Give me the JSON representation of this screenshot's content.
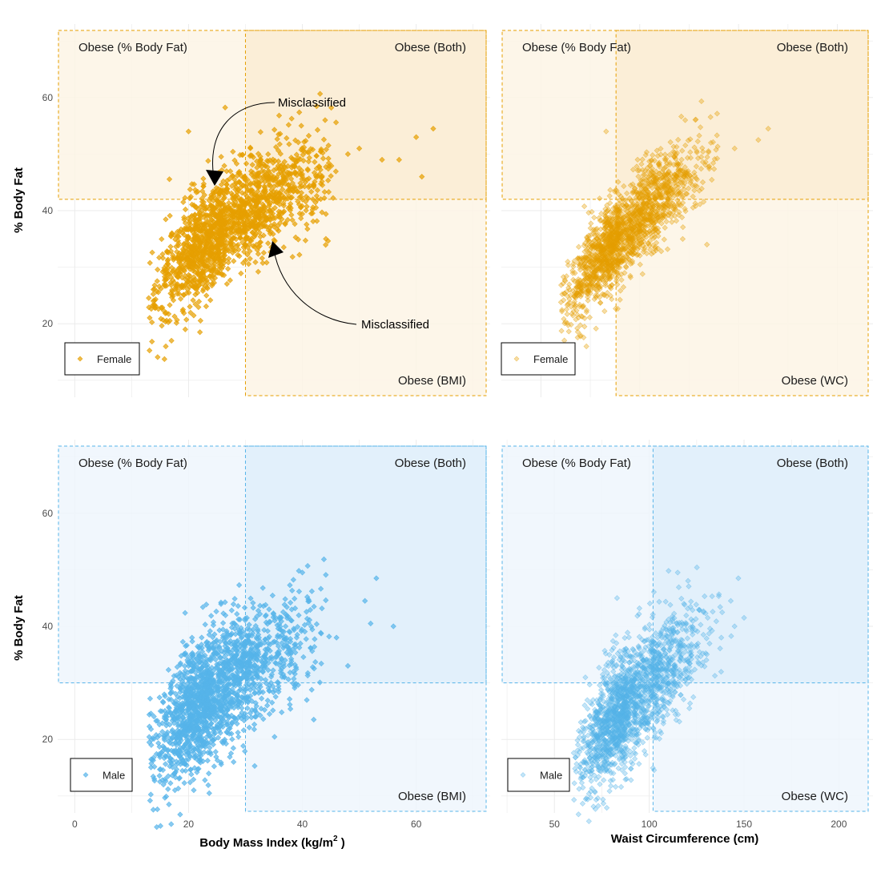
{
  "colors": {
    "female": "#E69F00",
    "male": "#56B4E9",
    "grid": "#ebebeb",
    "female_fill_light": "#fdf5e5",
    "female_fill_dark": "#faebd0",
    "male_fill_light": "#eef6fd",
    "male_fill_dark": "#ddeef9"
  },
  "y_axis_title": "% Body Fat",
  "x_axis_titles": {
    "bmi_main": "Body Mass Index (kg/m",
    "bmi_sup": "2",
    "bmi_end": " )",
    "wc": "Waist Circumference (cm)"
  },
  "annotations": {
    "misclassified_top": "Misclassified",
    "misclassified_bottom": "Misclassified"
  },
  "chart_data": [
    {
      "id": "female-bmi",
      "type": "scatter",
      "group": "female",
      "legend": "Female",
      "xlim": [
        -3,
        73
      ],
      "ylim": [
        7,
        73
      ],
      "xticks": [
        0,
        20,
        40,
        60
      ],
      "yticks": [
        20,
        40,
        60
      ],
      "threshold_x": 30,
      "threshold_y": 42,
      "regions": {
        "pbf": "Obese (% Body Fat)",
        "both": "Obese (Both)",
        "x": "Obese (BMI)"
      },
      "cloud": {
        "x_range": [
          13,
          46
        ],
        "x_mode": 26,
        "curve": "log",
        "y_low": 24,
        "y_high": 48,
        "spread": 4.5,
        "count": 1700,
        "seed": 11
      },
      "outliers": [
        [
          20,
          54
        ],
        [
          44,
          56
        ],
        [
          48,
          50
        ],
        [
          50,
          51
        ],
        [
          54,
          49
        ],
        [
          57,
          49
        ],
        [
          60,
          53
        ],
        [
          61,
          46
        ],
        [
          63,
          54.5
        ],
        [
          30,
          34
        ],
        [
          22,
          18.5
        ],
        [
          16,
          16
        ],
        [
          17,
          17
        ]
      ],
      "opacity": 0.7
    },
    {
      "id": "female-wc",
      "type": "scatter",
      "group": "female",
      "legend": "Female",
      "xlim": [
        30,
        218
      ],
      "ylim": [
        7,
        73
      ],
      "xticks": [
        50,
        100,
        150,
        200
      ],
      "yticks": [
        20,
        40,
        60
      ],
      "threshold_x": 88,
      "threshold_y": 42,
      "regions": {
        "pbf": "Obese (% Body Fat)",
        "both": "Obese (Both)",
        "x": "Obese (WC)"
      },
      "cloud": {
        "x_range": [
          60,
          140
        ],
        "x_mode": 90,
        "curve": "log",
        "y_low": 22,
        "y_high": 50,
        "spread": 3.8,
        "count": 1700,
        "seed": 23
      },
      "outliers": [
        [
          83,
          54
        ],
        [
          123,
          56
        ],
        [
          136,
          52
        ],
        [
          148,
          51
        ],
        [
          160,
          52.5
        ],
        [
          165,
          54.5
        ],
        [
          134,
          34
        ],
        [
          73,
          16
        ],
        [
          70,
          18
        ],
        [
          65,
          25
        ]
      ],
      "opacity": 0.35
    },
    {
      "id": "male-bmi",
      "type": "scatter",
      "group": "male",
      "legend": "Male",
      "xlim": [
        -3,
        73
      ],
      "ylim": [
        7,
        73
      ],
      "xticks": [
        0,
        20,
        40,
        60
      ],
      "yticks": [
        20,
        40,
        60
      ],
      "threshold_x": 30,
      "threshold_y": 30,
      "regions": {
        "pbf": "Obese (% Body Fat)",
        "both": "Obese (Both)",
        "x": "Obese (BMI)"
      },
      "cloud": {
        "x_range": [
          13,
          45
        ],
        "x_mode": 24,
        "curve": "log",
        "y_low": 16,
        "y_high": 40,
        "spread": 5.5,
        "count": 1800,
        "seed": 37
      },
      "outliers": [
        [
          40,
          49.5
        ],
        [
          53,
          48.5
        ],
        [
          51,
          44.5
        ],
        [
          52,
          40.5
        ],
        [
          56,
          40
        ],
        [
          48,
          33
        ],
        [
          42,
          23.5
        ],
        [
          39,
          38
        ],
        [
          46,
          38
        ]
      ],
      "opacity": 0.7
    },
    {
      "id": "male-wc",
      "type": "scatter",
      "group": "male",
      "legend": "Male",
      "xlim": [
        22,
        218
      ],
      "ylim": [
        7,
        73
      ],
      "xticks": [
        50,
        100,
        150,
        200
      ],
      "yticks": [
        20,
        40,
        60
      ],
      "threshold_x": 102,
      "threshold_y": 30,
      "regions": {
        "pbf": "Obese (% Body Fat)",
        "both": "Obese (Both)",
        "x": "Obese (WC)"
      },
      "cloud": {
        "x_range": [
          60,
          145
        ],
        "x_mode": 88,
        "curve": "log",
        "y_low": 14,
        "y_high": 42,
        "spread": 5,
        "count": 1800,
        "seed": 53
      },
      "outliers": [
        [
          115,
          49.5
        ],
        [
          147,
          48.5
        ],
        [
          143,
          44.5
        ],
        [
          150,
          41.5
        ],
        [
          145,
          40
        ],
        [
          138,
          38
        ],
        [
          83,
          45
        ]
      ],
      "opacity": 0.35
    }
  ]
}
